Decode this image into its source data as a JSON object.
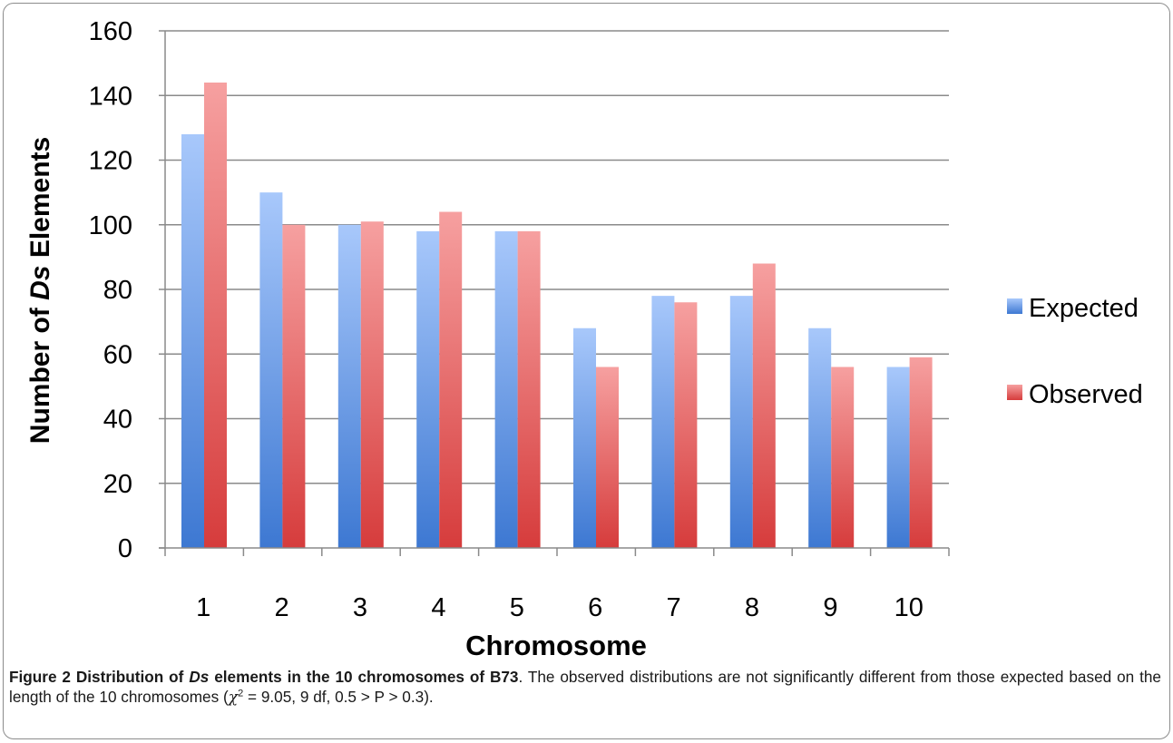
{
  "chart_data": {
    "type": "bar",
    "categories": [
      "1",
      "2",
      "3",
      "4",
      "5",
      "6",
      "7",
      "8",
      "9",
      "10"
    ],
    "series": [
      {
        "name": "Expected",
        "values": [
          128,
          110,
          100,
          98,
          98,
          68,
          78,
          78,
          68,
          56
        ],
        "color": "#4f86d9"
      },
      {
        "name": "Observed",
        "values": [
          144,
          100,
          101,
          104,
          98,
          56,
          76,
          88,
          56,
          59
        ],
        "color": "#dd4a4a"
      }
    ],
    "title": "",
    "xlabel": "Chromosome",
    "ylabel_prefix": "Number of ",
    "ylabel_italic": "Ds",
    "ylabel_suffix": " Elements",
    "ylim": [
      0,
      160
    ],
    "yticks": [
      0,
      20,
      40,
      60,
      80,
      100,
      120,
      140,
      160
    ],
    "grid": true,
    "legend_position": "right"
  },
  "caption": {
    "title_prefix": "Figure 2 Distribution of ",
    "title_italic": "Ds",
    "title_suffix": " elements in the 10 chromosomes of B73",
    "text_1": ". The observed distributions are not significantly different from those expected based on the length of the 10 chromosomes (",
    "chi_symbol": "χ",
    "chi_exp": "2",
    "text_2": " = 9.05, 9 df, 0.5 > P > 0.3)."
  }
}
